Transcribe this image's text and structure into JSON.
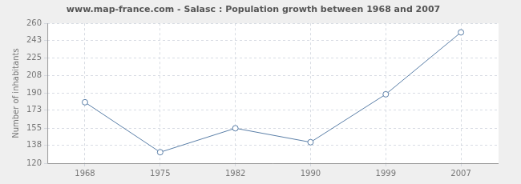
{
  "chart_data": {
    "type": "line",
    "title": "www.map-france.com - Salasc : Population growth between 1968 and 2007",
    "y_label": "Number of inhabitants",
    "categories": [
      "1968",
      "1975",
      "1982",
      "1990",
      "1999",
      "2007"
    ],
    "values": [
      181,
      131,
      155,
      141,
      189,
      251
    ],
    "color": "#5b7fa8",
    "marker": "circle",
    "ylim": [
      120,
      260
    ],
    "yticks": [
      120,
      138,
      155,
      173,
      190,
      208,
      225,
      243,
      260
    ],
    "grid": true
  }
}
